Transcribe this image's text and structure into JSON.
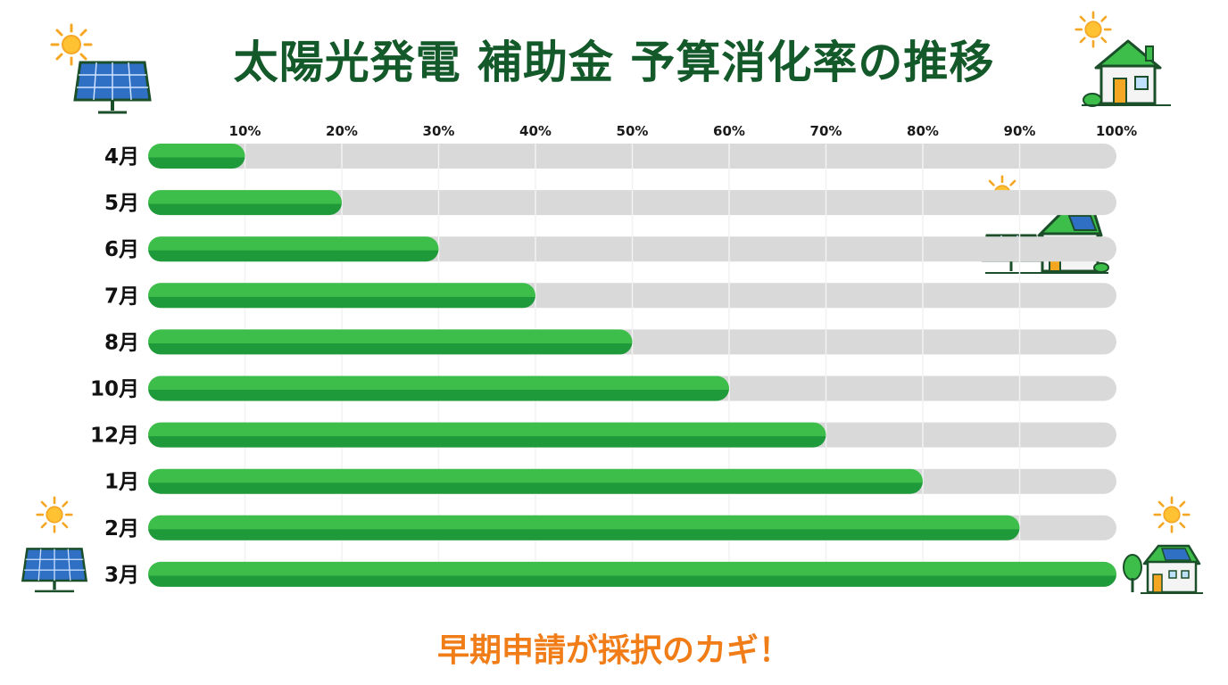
{
  "title": "太陽光発電 補助金 予算消化率の推移",
  "footer": "早期申請が採択のカギ！",
  "colors": {
    "title": "#14592a",
    "footer": "#f07d17",
    "bar_fill": "#3dbd49",
    "bar_fill_dark": "#1f9a3a",
    "track": "#d9d9d9",
    "gridline": "#f2f2f2"
  },
  "icons": [
    "solar-panel-icon",
    "sun-icon",
    "house-icon",
    "house-with-solar-panel-icon",
    "tree-icon"
  ],
  "chart_data": {
    "type": "bar",
    "orientation": "horizontal",
    "categories": [
      "4月",
      "5月",
      "6月",
      "7月",
      "8月",
      "10月",
      "12月",
      "1月",
      "2月",
      "3月"
    ],
    "values": [
      10,
      20,
      30,
      40,
      50,
      60,
      70,
      80,
      90,
      100
    ],
    "xlim": [
      0,
      100
    ],
    "x_ticks": [
      "10%",
      "20%",
      "30%",
      "40%",
      "50%",
      "60%",
      "70%",
      "80%",
      "90%",
      "100%"
    ],
    "grid": true,
    "xlabel": "",
    "ylabel": ""
  }
}
